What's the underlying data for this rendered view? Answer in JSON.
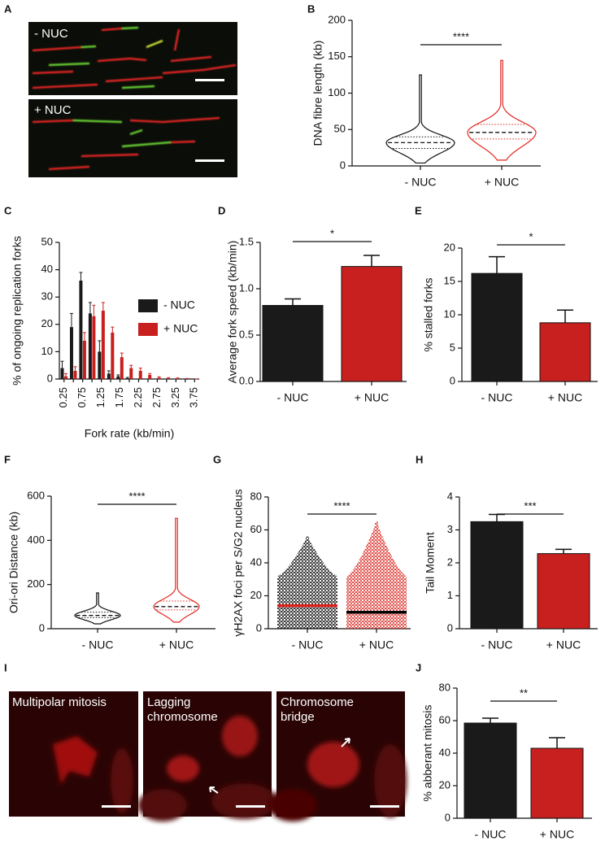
{
  "chart_data": [
    {
      "type": "image",
      "panel": "A",
      "labels": [
        "- NUC",
        "+ NUC"
      ]
    },
    {
      "type": "violin",
      "panel": "B",
      "ylabel": "DNA fibre length (kb)",
      "categories": [
        "- NUC",
        "+ NUC"
      ],
      "values": [
        32,
        46
      ],
      "q1": [
        24,
        37
      ],
      "q3": [
        40,
        57
      ],
      "min": [
        4,
        8
      ],
      "max": [
        125,
        145
      ],
      "colors": [
        "#111111",
        "#e0261f"
      ],
      "ylim": [
        0,
        200
      ],
      "yticks": [
        0,
        50,
        100,
        150,
        200
      ],
      "significance": "****"
    },
    {
      "type": "grouped_bar",
      "panel": "C",
      "ylabel": "% of ongoing replication forks",
      "xlabel": "Fork rate (kb/min)",
      "categories": [
        "0.25",
        null,
        "0.75",
        null,
        "1.25",
        null,
        "1.75",
        null,
        "2.25",
        null,
        "2.75",
        null,
        "3.25",
        null,
        "3.75"
      ],
      "series": [
        {
          "name": "- NUC",
          "color": "#1a1a1a",
          "values": [
            4,
            19,
            36,
            24,
            10,
            2,
            1,
            0.3,
            0,
            0,
            0,
            0,
            0,
            0,
            0
          ],
          "errors": [
            2.5,
            5,
            3,
            4,
            4,
            1,
            0.5,
            0.3,
            0,
            0,
            0,
            0,
            0,
            0,
            0
          ]
        },
        {
          "name": "+ NUC",
          "color": "#c8201e",
          "values": [
            1,
            3,
            14,
            23,
            25,
            17,
            8,
            4,
            3,
            1.5,
            0.5,
            0.3,
            0.2,
            0.1,
            0
          ],
          "errors": [
            1,
            1.5,
            3,
            4,
            3,
            2,
            1.5,
            1,
            1,
            0.5,
            0.3,
            0.2,
            0.2,
            0.1,
            0
          ]
        }
      ],
      "ylim": [
        0,
        50
      ],
      "yticks": [
        0,
        10,
        20,
        30,
        40,
        50
      ]
    },
    {
      "type": "bar",
      "panel": "D",
      "ylabel": "Average fork speed (kb/min)",
      "categories": [
        "- NUC",
        "+ NUC"
      ],
      "values": [
        0.82,
        1.24
      ],
      "errors": [
        0.07,
        0.12
      ],
      "colors": [
        "#1a1a1a",
        "#c8201e"
      ],
      "ylim": [
        0,
        1.5
      ],
      "yticks": [
        {
          "value": 0,
          "label": "0.0"
        },
        0.5,
        {
          "value": 1,
          "label": "1.0"
        },
        1.5
      ],
      "significance": "*"
    },
    {
      "type": "bar",
      "panel": "E",
      "ylabel": "% stalled forks",
      "categories": [
        "- NUC",
        "+ NUC"
      ],
      "values": [
        16.2,
        8.8
      ],
      "errors": [
        2.5,
        1.9
      ],
      "colors": [
        "#1a1a1a",
        "#c8201e"
      ],
      "ylim": [
        0,
        20
      ],
      "yticks": [
        0,
        5,
        10,
        15,
        20
      ],
      "significance": "*"
    },
    {
      "type": "violin",
      "panel": "F",
      "ylabel": "Ori-ori Distance (kb)",
      "categories": [
        "- NUC",
        "+ NUC"
      ],
      "values": [
        60,
        100
      ],
      "q1": [
        50,
        85
      ],
      "q3": [
        75,
        125
      ],
      "min": [
        22,
        30
      ],
      "max": [
        162,
        500
      ],
      "colors": [
        "#111111",
        "#e0261f"
      ],
      "ylim": [
        0,
        600
      ],
      "yticks": [
        0,
        200,
        400,
        600
      ],
      "significance": "****"
    },
    {
      "type": "dot",
      "panel": "G",
      "ylabel": "γH2AX foci per S/G2 nucleus",
      "categories": [
        "- NUC",
        "+ NUC"
      ],
      "values": [
        14,
        10
      ],
      "max": [
        56,
        65
      ],
      "colors": [
        "#000000",
        "#d9221c"
      ],
      "mean_colors": [
        "#d9221c",
        "#000000"
      ],
      "ylim": [
        0,
        80
      ],
      "yticks": [
        0,
        20,
        40,
        60,
        80
      ],
      "significance": "****"
    },
    {
      "type": "bar",
      "panel": "H",
      "ylabel": "Tail Moment",
      "categories": [
        "- NUC",
        "+ NUC"
      ],
      "values": [
        3.25,
        2.28
      ],
      "errors": [
        0.22,
        0.13
      ],
      "colors": [
        "#1a1a1a",
        "#c8201e"
      ],
      "ylim": [
        0,
        4
      ],
      "yticks": [
        0,
        1,
        2,
        3,
        4
      ],
      "significance": "***"
    },
    {
      "type": "image",
      "panel": "I",
      "labels": [
        [
          "Multipolar mitosis"
        ],
        [
          "Lagging",
          "chromosome"
        ],
        [
          "Chromosome",
          "bridge"
        ]
      ]
    },
    {
      "type": "bar",
      "panel": "J",
      "ylabel": "% abberant mitosis",
      "categories": [
        "- NUC",
        "+ NUC"
      ],
      "values": [
        58.5,
        43
      ],
      "errors": [
        3,
        6.5
      ],
      "colors": [
        "#1a1a1a",
        "#c8201e"
      ],
      "ylim": [
        0,
        80
      ],
      "yticks": [
        0,
        20,
        40,
        60,
        80
      ],
      "significance": "**"
    }
  ]
}
